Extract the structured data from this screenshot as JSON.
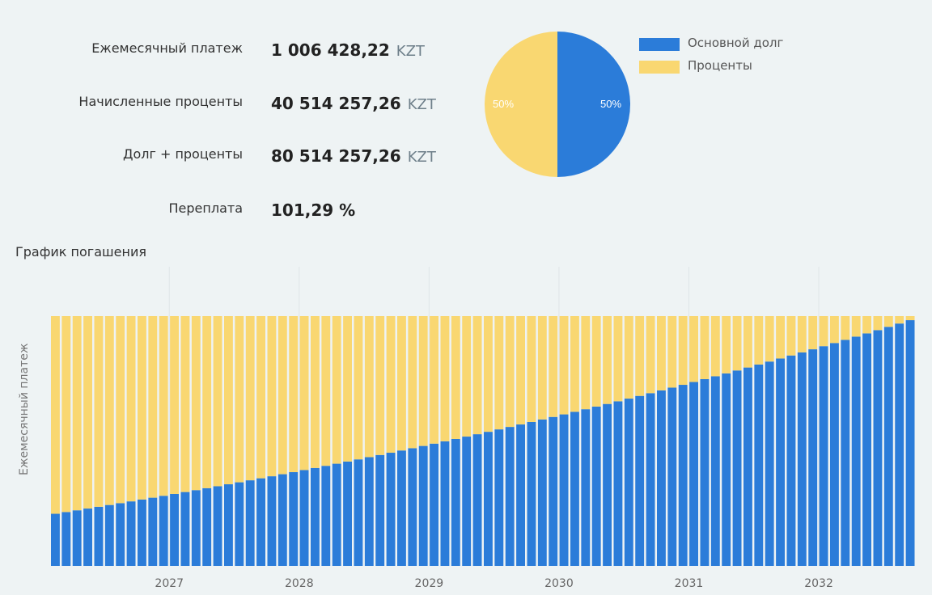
{
  "summary": {
    "monthly_payment": {
      "label": "Ежемесячный платеж",
      "value": "1 006 428,22",
      "currency": "KZT"
    },
    "accrued_interest": {
      "label": "Начисленные проценты",
      "value": "40 514 257,26",
      "currency": "KZT"
    },
    "debt_plus_interest": {
      "label": "Долг + проценты",
      "value": "80 514 257,26",
      "currency": "KZT"
    },
    "overpayment": {
      "label": "Переплата",
      "value": "101,29 %"
    }
  },
  "legend": {
    "principal": {
      "label": "Основной долг",
      "color": "#2b7cd9"
    },
    "interest": {
      "label": "Проценты",
      "color": "#f9d771"
    }
  },
  "pie": {
    "principal_pct_label": "50%",
    "interest_pct_label": "50%"
  },
  "chart_data": [
    {
      "type": "pie",
      "categories": [
        "Основной долг",
        "Проценты"
      ],
      "values": [
        50,
        50
      ],
      "colors": [
        "#2b7cd9",
        "#f9d771"
      ],
      "labels": [
        "50%",
        "50%"
      ]
    },
    {
      "type": "bar",
      "stacked": true,
      "title": "График погашения",
      "xlabel": "",
      "ylabel": "Ежемесячный платеж",
      "x_tick_labels": [
        "2027",
        "2028",
        "2029",
        "2030",
        "2031",
        "2032"
      ],
      "x_tick_positions": [
        2027,
        2028,
        2029,
        2030,
        2031,
        2032
      ],
      "x_start": 2026.083,
      "x_step": 0.0833,
      "bar_count": 80,
      "total_payment": 1006428.22,
      "series": [
        {
          "name": "Основной долг",
          "color": "#2b7cd9",
          "start_value": 210000,
          "end_value": 990000
        },
        {
          "name": "Проценты",
          "color": "#f9d771",
          "start_value": 796428,
          "end_value": 16428
        }
      ],
      "ylim": [
        0,
        1006428.22
      ],
      "grid": "x"
    }
  ],
  "chart_title": "График погашения",
  "y_axis_label": "Ежемесячный платеж"
}
